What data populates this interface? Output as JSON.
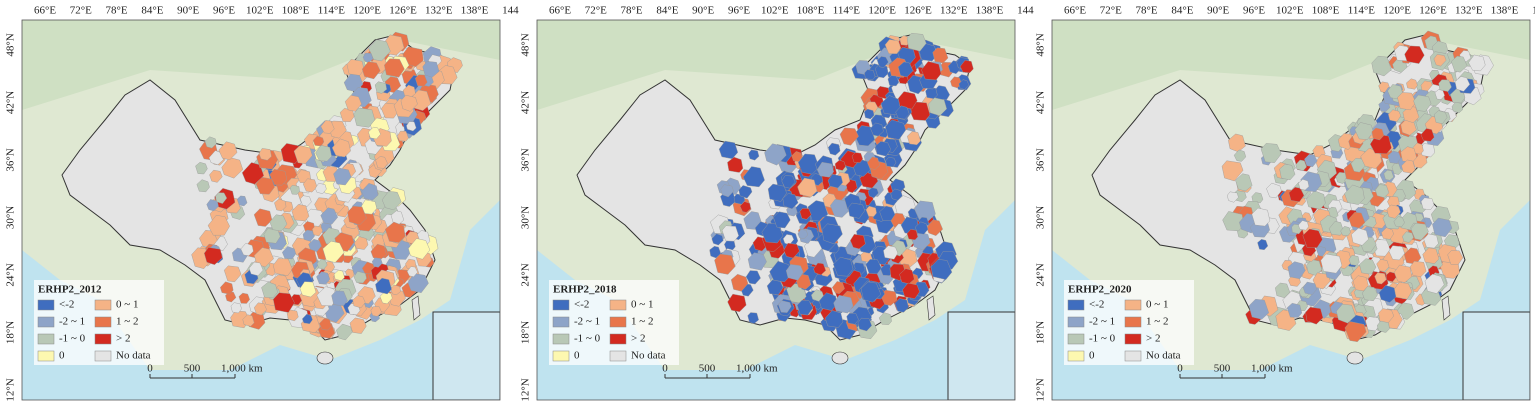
{
  "axes": {
    "lon_labels": [
      "66°E",
      "72°E",
      "78°E",
      "84°E",
      "90°E",
      "96°E",
      "102°E",
      "108°E",
      "114°E",
      "120°E",
      "126°E",
      "132°E",
      "138°E",
      "144"
    ],
    "lat_labels": [
      "48°N",
      "42°N",
      "36°N",
      "30°N",
      "24°N",
      "18°N",
      "12°N"
    ]
  },
  "legend": {
    "items": [
      {
        "label": "<-2",
        "color": "#3f6dbf"
      },
      {
        "label": "0 ~ 1",
        "color": "#f5b386"
      },
      {
        "label": "-2 ~ 1",
        "color": "#8ea4c8"
      },
      {
        "label": "1 ~ 2",
        "color": "#e8754b"
      },
      {
        "label": "-1 ~ 0",
        "color": "#b9c8b6"
      },
      {
        "label": "> 2",
        "color": "#d32a20"
      },
      {
        "label": "0",
        "color": "#fdf8b0"
      },
      {
        "label": "No data",
        "color": "#e4e4e4"
      }
    ]
  },
  "scale_bar": {
    "labels": [
      "0",
      "500",
      "1,000 km"
    ]
  },
  "panels": [
    {
      "title": "ERHP2_2012"
    },
    {
      "title": "ERHP2_2018"
    },
    {
      "title": "ERHP2_2020"
    }
  ]
}
